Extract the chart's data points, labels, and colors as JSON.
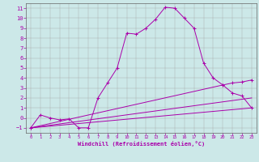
{
  "title": "",
  "xlabel": "Windchill (Refroidissement éolien,°C)",
  "bg_color": "#cce8e8",
  "grid_color": "#aaaaaa",
  "line_color": "#aa00aa",
  "xlim": [
    -0.5,
    23.5
  ],
  "ylim": [
    -1.5,
    11.5
  ],
  "xticks": [
    0,
    1,
    2,
    3,
    4,
    5,
    6,
    7,
    8,
    9,
    10,
    11,
    12,
    13,
    14,
    15,
    16,
    17,
    18,
    19,
    20,
    21,
    22,
    23
  ],
  "yticks": [
    -1,
    0,
    1,
    2,
    3,
    4,
    5,
    6,
    7,
    8,
    9,
    10,
    11
  ],
  "line1_x": [
    0,
    1,
    2,
    3,
    4,
    5,
    6,
    7,
    8,
    9,
    10,
    11,
    12,
    13,
    14,
    15,
    16,
    17,
    18,
    19,
    20,
    21,
    22,
    23
  ],
  "line1_y": [
    -1,
    0.3,
    0.0,
    -0.2,
    -0.1,
    -1.0,
    -1.0,
    2.0,
    3.5,
    5.0,
    8.5,
    8.4,
    9.0,
    9.9,
    11.1,
    11.0,
    10.0,
    9.0,
    5.5,
    4.0,
    3.3,
    2.5,
    2.2,
    1.0
  ],
  "line2_x": [
    0,
    23
  ],
  "line2_y": [
    -1,
    1.0
  ],
  "line3_x": [
    0,
    23
  ],
  "line3_y": [
    -1,
    2.0
  ],
  "line4_x": [
    0,
    20,
    21,
    22,
    23
  ],
  "line4_y": [
    -1,
    3.3,
    3.5,
    3.6,
    3.8
  ],
  "marker_line_x": [
    0,
    1,
    2,
    3,
    4,
    5,
    6,
    10,
    11,
    12,
    13,
    14,
    15,
    16,
    17,
    18,
    19,
    20,
    21,
    22,
    23
  ],
  "marker_line_y": [
    -1,
    0.3,
    0.0,
    -0.2,
    -0.1,
    -1.0,
    -1.0,
    8.5,
    8.4,
    9.0,
    9.9,
    11.1,
    11.0,
    10.0,
    9.0,
    5.5,
    4.0,
    3.3,
    2.5,
    2.2,
    1.0
  ]
}
